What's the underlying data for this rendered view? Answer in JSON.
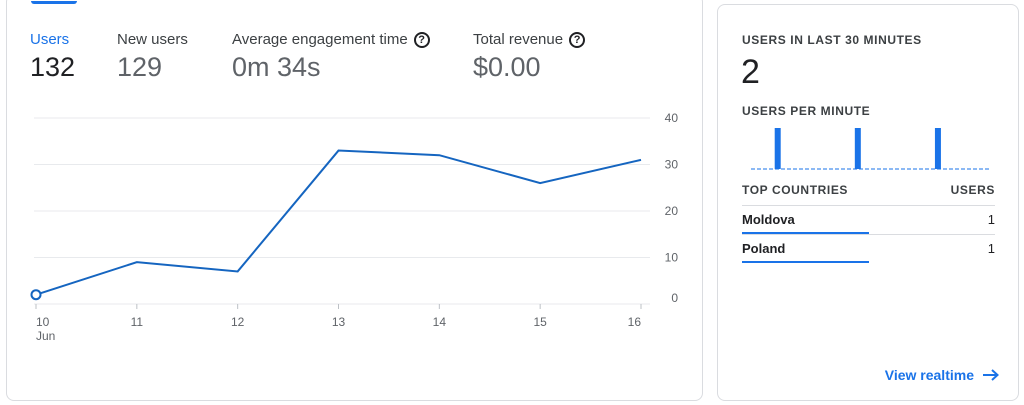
{
  "metrics": [
    {
      "label": "Users",
      "value": "132",
      "help": false
    },
    {
      "label": "New users",
      "value": "129",
      "help": false
    },
    {
      "label": "Average engagement time",
      "value": "0m 34s",
      "help": true
    },
    {
      "label": "Total revenue",
      "value": "$0.00",
      "help": true
    }
  ],
  "chart_data": {
    "type": "line",
    "x": [
      "10",
      "11",
      "12",
      "13",
      "14",
      "15",
      "16"
    ],
    "x_sublabel": "Jun",
    "series": [
      {
        "values": [
          2,
          9,
          7,
          33,
          32,
          26,
          31
        ]
      }
    ],
    "yticks": [
      0,
      10,
      20,
      30,
      40
    ],
    "ylim": [
      0,
      40
    ],
    "grid": true,
    "color": "#1565c0"
  },
  "realtime": {
    "title": "USERS IN LAST 30 MINUTES",
    "count": "2",
    "per_minute_title": "USERS PER MINUTE",
    "per_minute": [
      0,
      0,
      0,
      0,
      0,
      1,
      0,
      0,
      0,
      0,
      0,
      0,
      0,
      0,
      0,
      0,
      0,
      0,
      0,
      0,
      1,
      0,
      0,
      0,
      0,
      0,
      0,
      0,
      0,
      0,
      0,
      0,
      0,
      0,
      0,
      1,
      0,
      0,
      0,
      0,
      0,
      0,
      0,
      0,
      0
    ],
    "countries_header": "TOP COUNTRIES",
    "users_header": "USERS",
    "countries": [
      {
        "name": "Moldova",
        "users": "1",
        "share": 0.5
      },
      {
        "name": "Poland",
        "users": "1",
        "share": 0.5
      }
    ],
    "view_link": "View realtime",
    "accent": "#1a73e8"
  }
}
